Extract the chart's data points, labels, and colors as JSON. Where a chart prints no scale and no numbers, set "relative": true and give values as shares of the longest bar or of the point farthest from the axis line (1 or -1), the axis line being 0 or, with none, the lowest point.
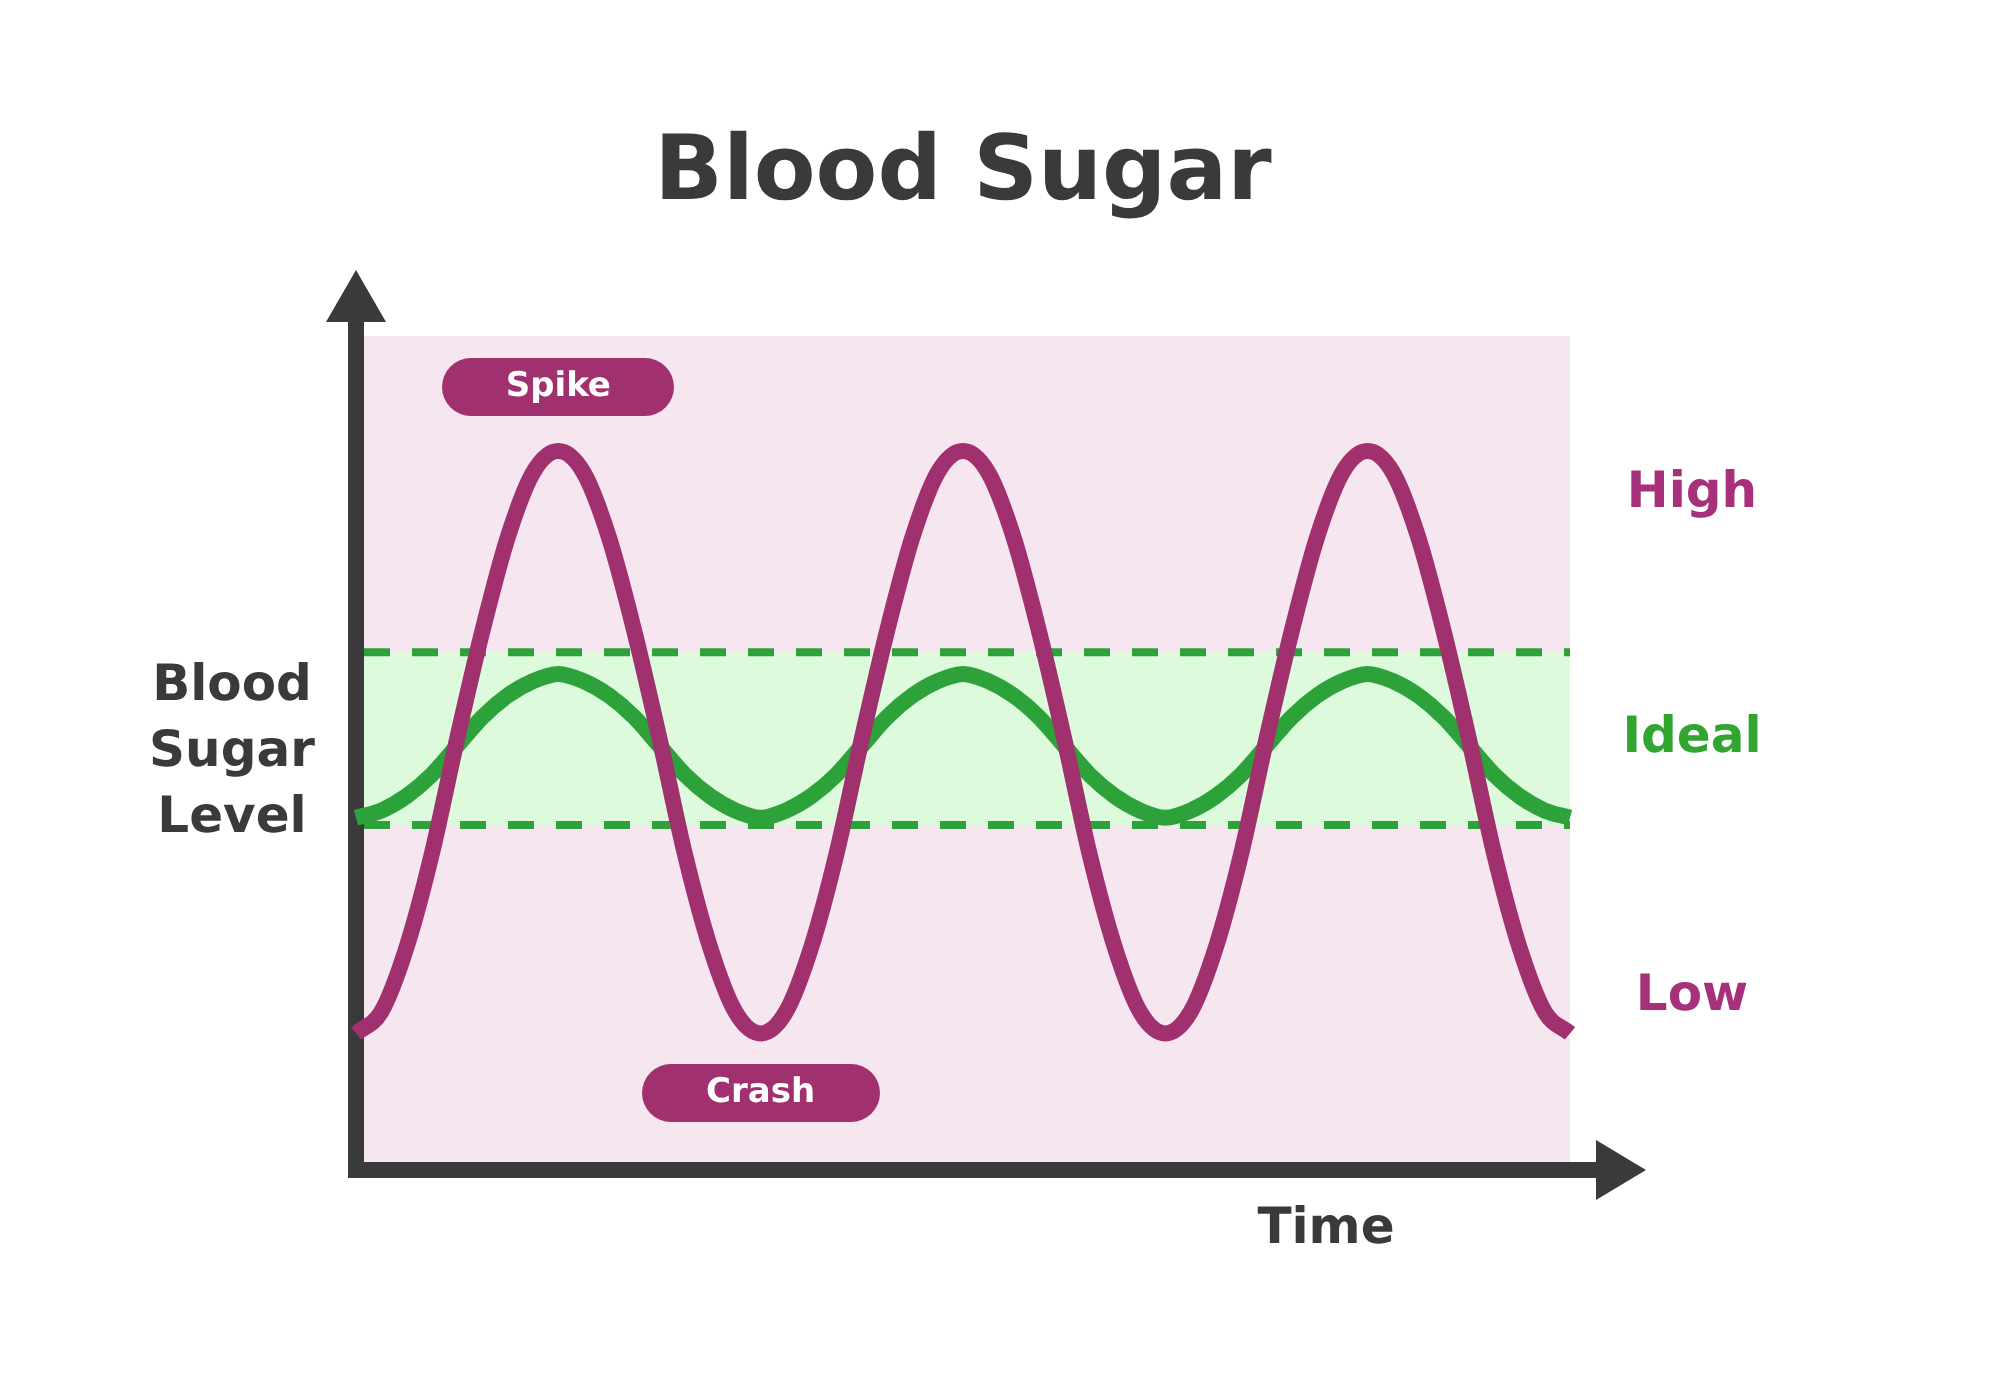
{
  "chart_data": {
    "type": "line",
    "title": "Blood Sugar",
    "xlabel": "Time",
    "ylabel": "Blood Sugar Level",
    "relative": true,
    "categories": [
      null,
      null,
      null,
      null,
      null,
      null,
      null,
      null,
      null,
      null,
      null,
      null,
      null,
      null,
      null,
      null,
      null,
      null,
      null,
      null,
      null,
      null,
      null,
      null,
      null,
      null,
      null,
      null,
      null,
      null,
      null,
      null,
      null,
      null,
      null,
      null,
      null,
      null,
      null,
      null,
      null,
      null,
      null,
      null,
      null,
      null,
      null,
      null,
      null
    ],
    "series": [
      {
        "color": "#a1306f",
        "values": [
          0.19,
          0.22,
          0.31,
          0.44,
          0.6,
          0.75,
          0.88,
          0.97,
          1,
          0.97,
          0.88,
          0.75,
          0.6,
          0.44,
          0.31,
          0.22,
          0.19,
          0.22,
          0.31,
          0.44,
          0.6,
          0.75,
          0.88,
          0.97,
          1,
          0.97,
          0.88,
          0.75,
          0.6,
          0.44,
          0.31,
          0.22,
          0.19,
          0.22,
          0.31,
          0.44,
          0.6,
          0.75,
          0.88,
          0.97,
          1,
          0.97,
          0.88,
          0.75,
          0.6,
          0.44,
          0.31,
          0.22,
          0.19
        ]
      },
      {
        "color": "#2ea23a",
        "values": [
          0.49,
          0.5,
          0.52,
          0.55,
          0.59,
          0.63,
          0.66,
          0.68,
          0.69,
          0.68,
          0.66,
          0.63,
          0.59,
          0.55,
          0.52,
          0.5,
          0.49,
          0.5,
          0.52,
          0.55,
          0.59,
          0.63,
          0.66,
          0.68,
          0.69,
          0.68,
          0.66,
          0.63,
          0.59,
          0.55,
          0.52,
          0.5,
          0.49,
          0.5,
          0.52,
          0.55,
          0.59,
          0.63,
          0.66,
          0.68,
          0.69,
          0.68,
          0.66,
          0.63,
          0.59,
          0.55,
          0.52,
          0.5,
          0.49
        ]
      }
    ],
    "bands": [
      {
        "axis": "y",
        "from": 0.72,
        "to": 1.16,
        "label": "High",
        "color": "#f6e6f0"
      },
      {
        "axis": "y",
        "from": 0.48,
        "to": 0.72,
        "label": "Ideal",
        "color": "#ddfadd"
      },
      {
        "axis": "y",
        "from": 0,
        "to": 0.48,
        "label": "Low",
        "color": "#f6e6f0"
      }
    ],
    "ref_lines": [
      {
        "axis": "y",
        "value": 0.72,
        "color": "#2ea23a",
        "line_style": "dashed"
      },
      {
        "axis": "y",
        "value": 0.48,
        "color": "#2ea23a",
        "line_style": "dashed"
      }
    ],
    "annotations": [
      {
        "text": "Spike",
        "y": 1
      },
      {
        "text": "Crash",
        "y": 0.19
      }
    ],
    "legend": false
  }
}
